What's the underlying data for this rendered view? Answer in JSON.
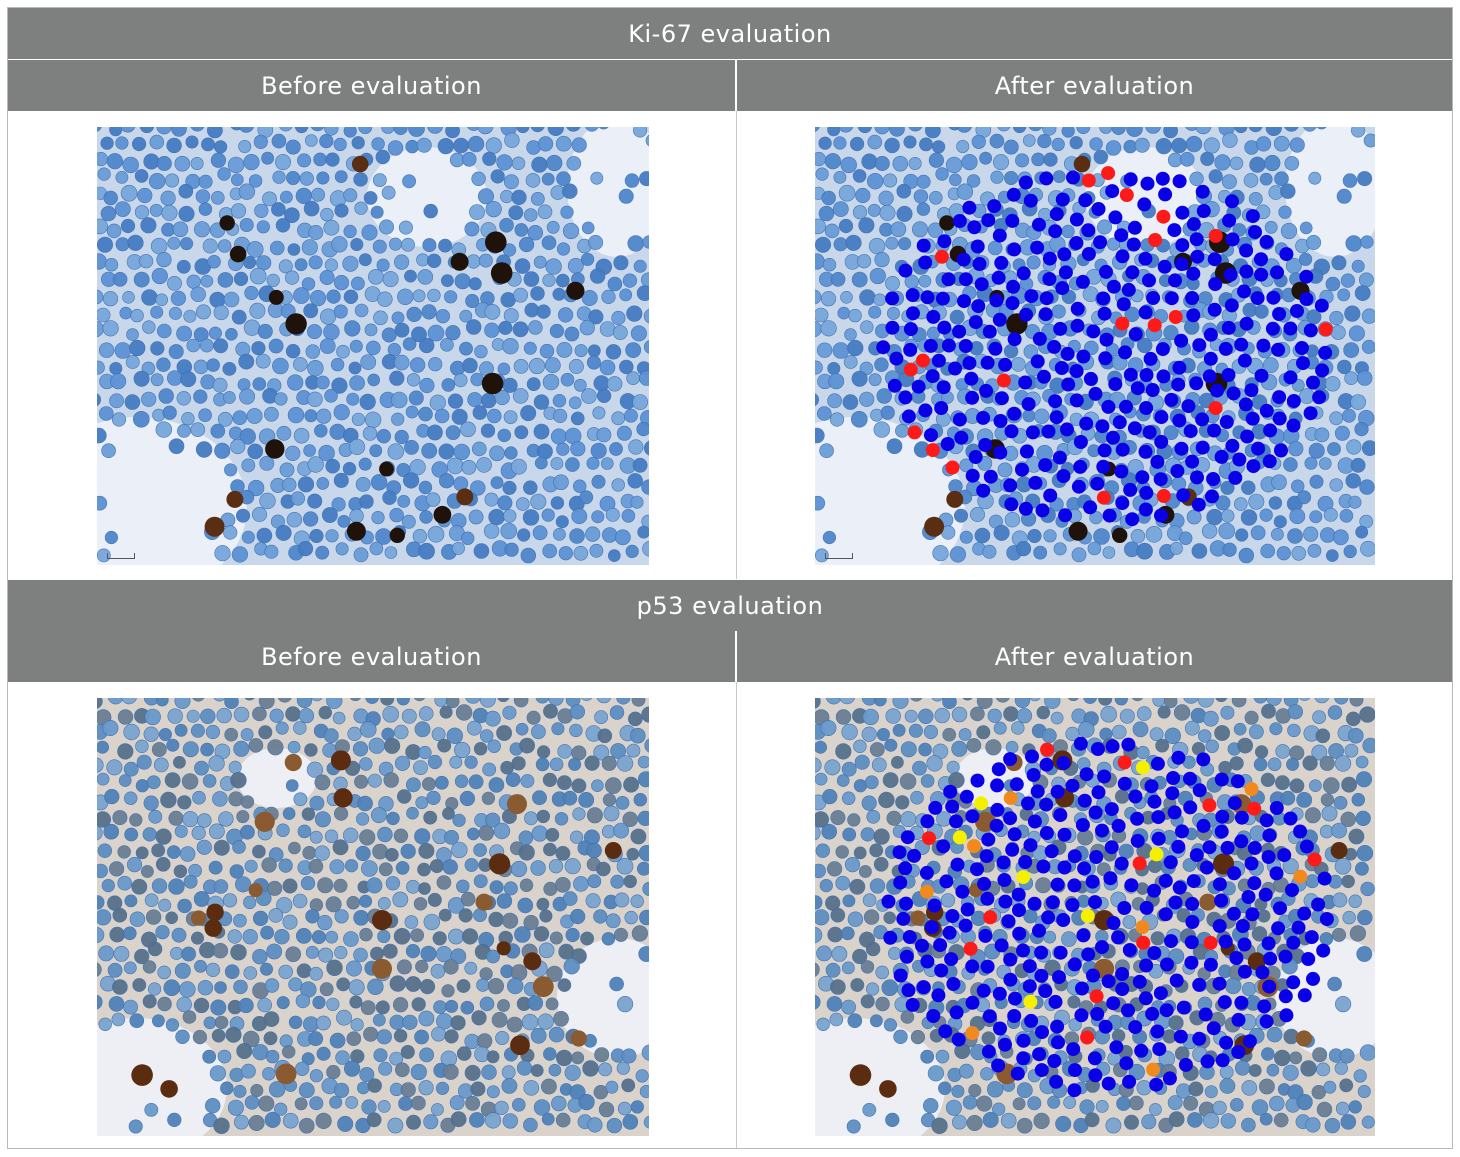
{
  "sections": [
    {
      "title": "Ki-67 evaluation",
      "before_label": "Before evaluation",
      "after_label": "After evaluation",
      "stain_style": "ki67",
      "markers": {
        "blue": "#0a00e8",
        "red": "#ff1a1a"
      }
    },
    {
      "title": "p53 evaluation",
      "before_label": "Before evaluation",
      "after_label": "After evaluation",
      "stain_style": "p53",
      "markers": {
        "blue": "#0a00e8",
        "red": "#ff1a1a",
        "orange": "#f08a1e",
        "yellow": "#f5f000"
      }
    }
  ],
  "colors": {
    "header_band": "#7e7f7f",
    "header_text": "#ffffff",
    "grid_line": "#c8c8c8"
  }
}
